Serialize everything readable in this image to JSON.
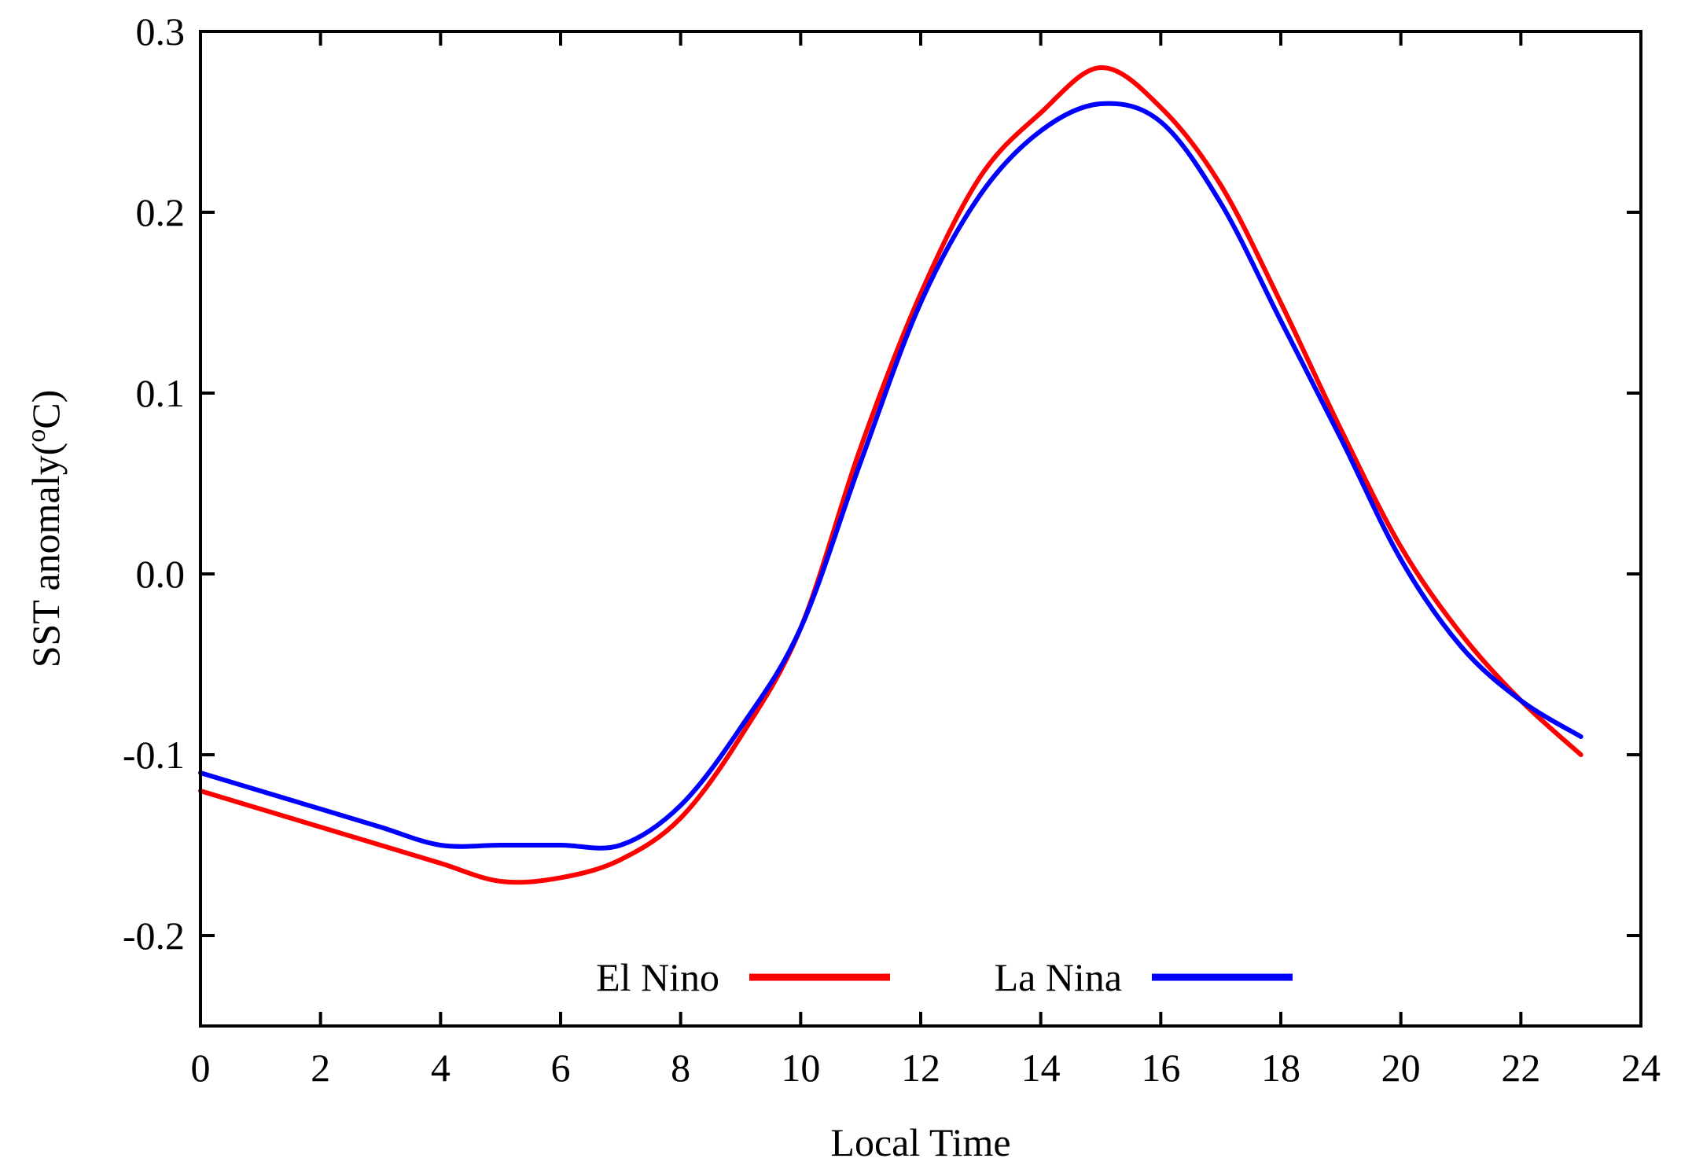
{
  "chart_data": {
    "type": "line",
    "title": "",
    "xlabel": "Local Time",
    "ylabel_main": "SST anomaly(",
    "ylabel_sup": "o",
    "ylabel_unit": "C)",
    "xlim": [
      0,
      24
    ],
    "ylim": [
      -0.25,
      0.3
    ],
    "xticks": [
      0,
      2,
      4,
      6,
      8,
      10,
      12,
      14,
      16,
      18,
      20,
      22,
      24
    ],
    "xtick_labels": [
      "0",
      "2",
      "4",
      "6",
      "8",
      "10",
      "12",
      "14",
      "16",
      "18",
      "20",
      "22",
      "24"
    ],
    "yticks": [
      -0.2,
      -0.1,
      0.0,
      0.1,
      0.2,
      0.3
    ],
    "ytick_labels": [
      "-0.2",
      "-0.1",
      "0.0",
      "0.1",
      "0.2",
      "0.3"
    ],
    "grid": false,
    "legend_position": "bottom-center",
    "x": [
      0,
      1,
      2,
      3,
      4,
      5,
      6,
      7,
      8,
      9,
      10,
      11,
      12,
      13,
      14,
      15,
      16,
      17,
      18,
      19,
      20,
      21,
      22,
      23
    ],
    "series": [
      {
        "name": "El Nino",
        "color": "#ff0000",
        "values": [
          -0.12,
          -0.13,
          -0.14,
          -0.15,
          -0.16,
          -0.17,
          -0.168,
          -0.158,
          -0.135,
          -0.09,
          -0.03,
          0.07,
          0.155,
          0.22,
          0.255,
          0.28,
          0.258,
          0.215,
          0.15,
          0.08,
          0.015,
          -0.033,
          -0.07,
          -0.1
        ]
      },
      {
        "name": "La Nina",
        "color": "#0000ff",
        "values": [
          -0.11,
          -0.12,
          -0.13,
          -0.14,
          -0.15,
          -0.15,
          -0.15,
          -0.15,
          -0.128,
          -0.085,
          -0.03,
          0.062,
          0.15,
          0.21,
          0.245,
          0.26,
          0.25,
          0.205,
          0.14,
          0.075,
          0.008,
          -0.04,
          -0.07,
          -0.09
        ]
      }
    ]
  }
}
